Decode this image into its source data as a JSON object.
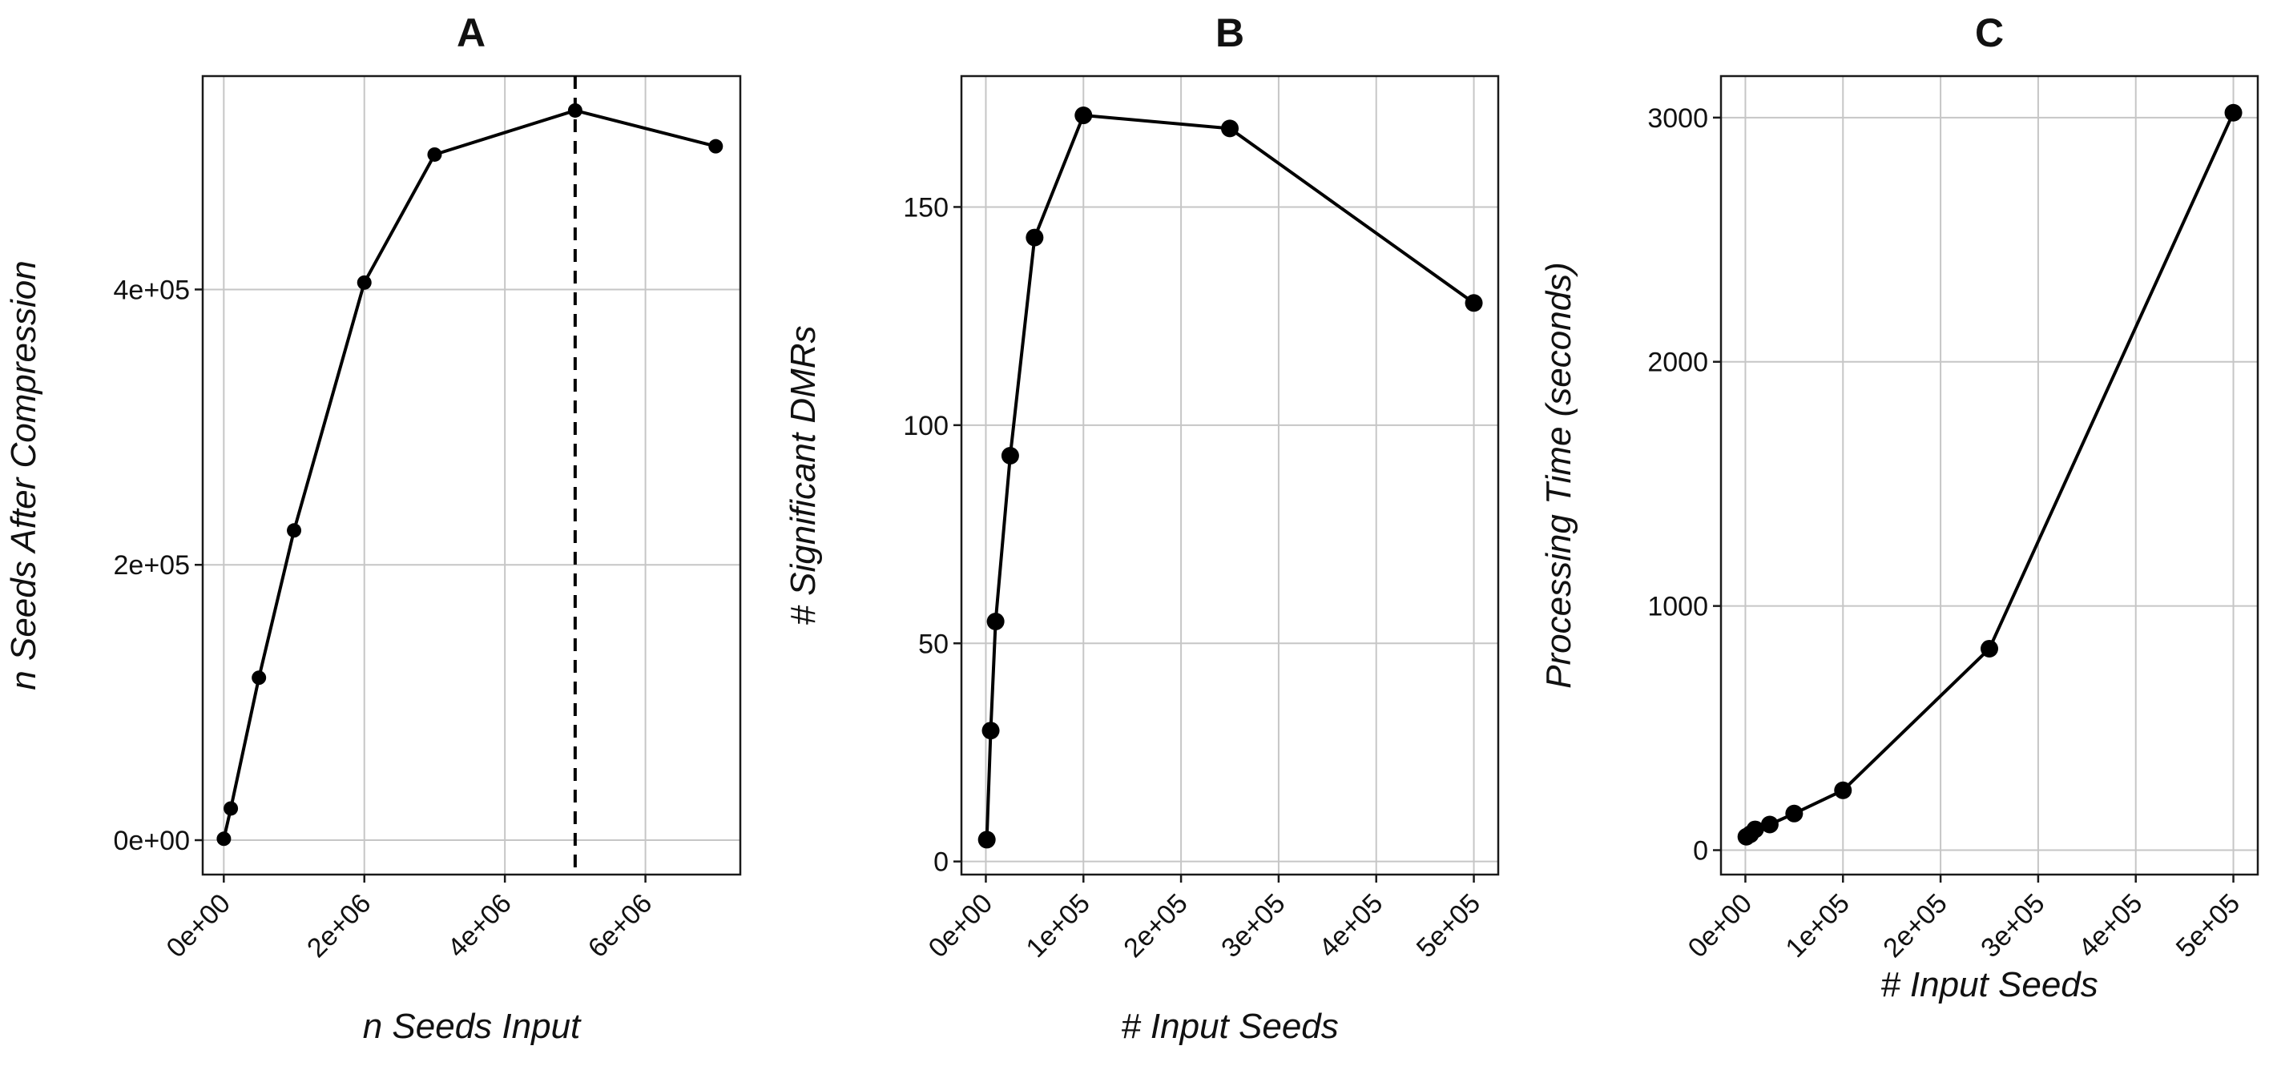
{
  "chart_data": [
    {
      "type": "line",
      "title": "A",
      "xlabel": "n Seeds Input",
      "ylabel": "n Seeds After Compression",
      "xlim": [
        -300000,
        7350000
      ],
      "ylim": [
        -25000,
        555000
      ],
      "xticks": [
        0,
        2000000,
        4000000,
        6000000
      ],
      "xtick_labels": [
        "0e+00",
        "2e+06",
        "4e+06",
        "6e+06"
      ],
      "yticks": [
        0,
        200000,
        400000
      ],
      "ytick_labels": [
        "0e+00",
        "2e+05",
        "4e+05"
      ],
      "grid": true,
      "marker_radius": 9,
      "vline": 5000000,
      "series": [
        {
          "x": [
            1000,
            100000,
            500000,
            1000000,
            2000000,
            3000000,
            5000000,
            7000000
          ],
          "y": [
            1000,
            23000,
            118000,
            225000,
            405000,
            498000,
            530000,
            504000
          ]
        }
      ]
    },
    {
      "type": "line",
      "title": "B",
      "xlabel": "# Input Seeds",
      "ylabel": "# Significant DMRs",
      "xlim": [
        -25000,
        525000
      ],
      "ylim": [
        -3,
        180
      ],
      "xticks": [
        0,
        100000,
        200000,
        300000,
        400000,
        500000
      ],
      "xtick_labels": [
        "0e+00",
        "1e+05",
        "2e+05",
        "3e+05",
        "4e+05",
        "5e+05"
      ],
      "yticks": [
        0,
        50,
        100,
        150
      ],
      "ytick_labels": [
        "0",
        "50",
        "100",
        "150"
      ],
      "grid": true,
      "marker_radius": 11,
      "series": [
        {
          "x": [
            1000,
            5000,
            10000,
            25000,
            50000,
            100000,
            250000,
            500000
          ],
          "y": [
            5,
            30,
            55,
            93,
            143,
            171,
            168,
            128
          ]
        }
      ]
    },
    {
      "type": "line",
      "title": "C",
      "xlabel": "# Input Seeds",
      "ylabel": "Processing Time (seconds)",
      "xlim": [
        -25000,
        525000
      ],
      "ylim": [
        -100,
        3170
      ],
      "xticks": [
        0,
        100000,
        200000,
        300000,
        400000,
        500000
      ],
      "xtick_labels": [
        "0e+00",
        "1e+05",
        "2e+05",
        "3e+05",
        "4e+05",
        "5e+05"
      ],
      "yticks": [
        0,
        1000,
        2000,
        3000
      ],
      "ytick_labels": [
        "0",
        "1000",
        "2000",
        "3000"
      ],
      "grid": true,
      "marker_radius": 11,
      "series": [
        {
          "x": [
            1000,
            5000,
            10000,
            25000,
            50000,
            100000,
            250000,
            500000
          ],
          "y": [
            55,
            65,
            85,
            105,
            150,
            245,
            825,
            3020
          ]
        }
      ]
    }
  ]
}
